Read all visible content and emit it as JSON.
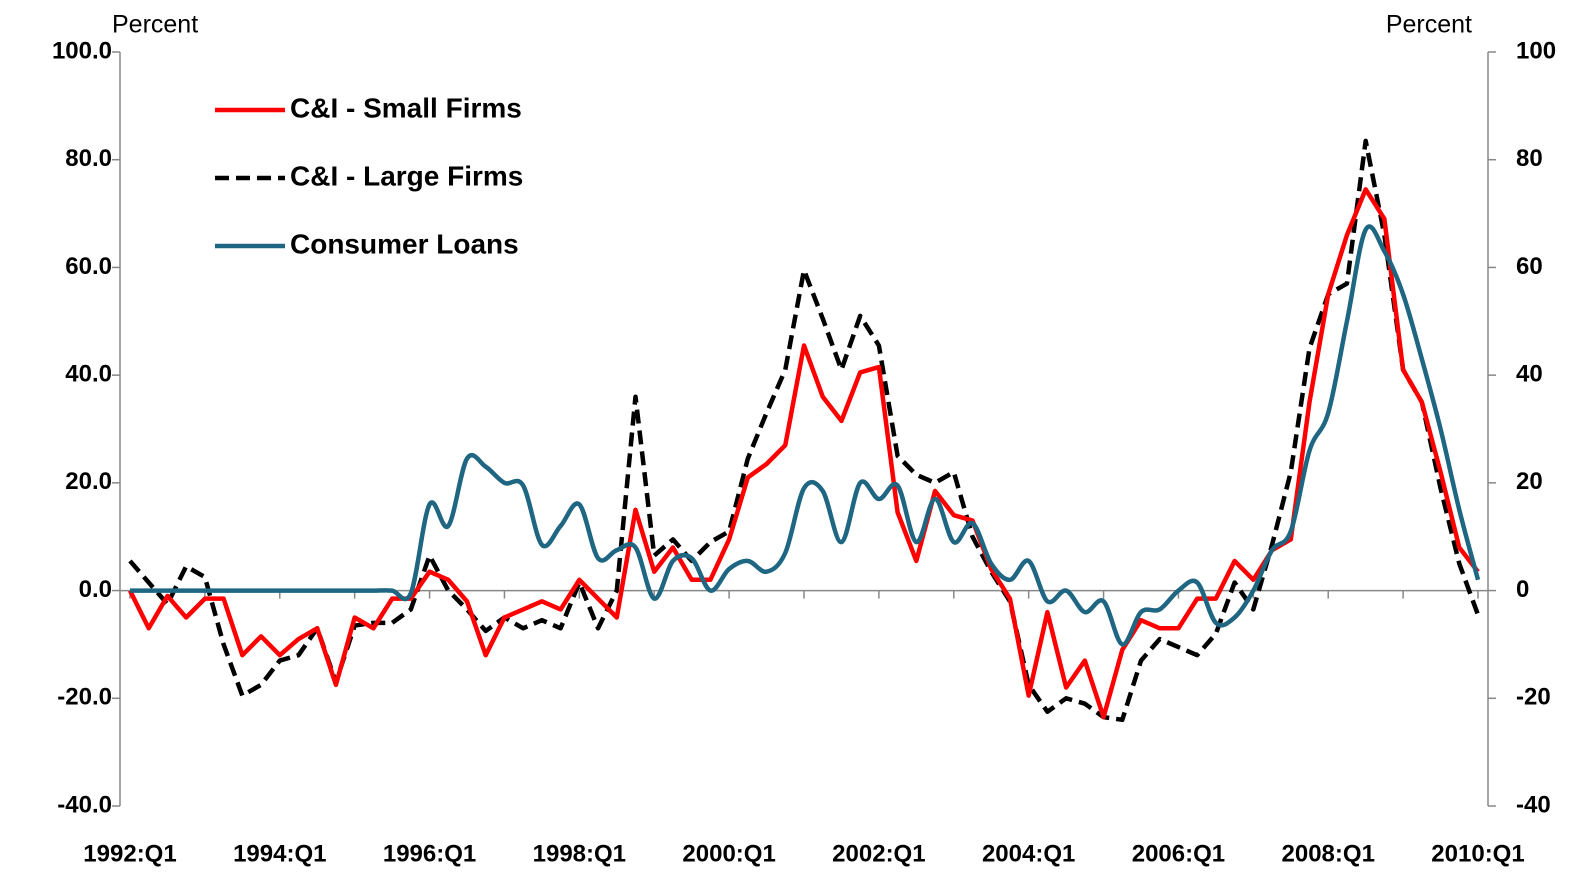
{
  "chart_data": {
    "type": "line",
    "y_label": "Percent",
    "y2_label": "Percent",
    "categories": [
      "1992:Q1",
      null,
      null,
      null,
      null,
      null,
      null,
      null,
      "1994:Q1",
      null,
      null,
      null,
      null,
      null,
      null,
      null,
      "1996:Q1",
      null,
      null,
      null,
      null,
      null,
      null,
      null,
      "1998:Q1",
      null,
      null,
      null,
      null,
      null,
      null,
      null,
      "2000:Q1",
      null,
      null,
      null,
      null,
      null,
      null,
      null,
      "2002:Q1",
      null,
      null,
      null,
      null,
      null,
      null,
      null,
      "2004:Q1",
      null,
      null,
      null,
      null,
      null,
      null,
      null,
      "2006:Q1",
      null,
      null,
      null,
      null,
      null,
      null,
      null,
      "2008:Q1",
      null,
      null,
      null,
      null,
      null,
      null,
      null,
      "2010:Q1"
    ],
    "series": [
      {
        "name": "C&I - Small Firms",
        "color": "#ff0000",
        "dash": false,
        "smooth": false,
        "values": [
          0,
          -7,
          -1,
          -5,
          -1.5,
          -1.5,
          -12,
          -8.5,
          -12,
          -9,
          -7,
          -17.5,
          -5,
          -7,
          -1.5,
          -1.5,
          3.5,
          2,
          -2,
          -12,
          -5,
          -3.5,
          -2,
          -3.5,
          2,
          -1.5,
          -5,
          15,
          3.5,
          8,
          2,
          2,
          9.5,
          21,
          23.5,
          27,
          45.5,
          36,
          31.5,
          40.5,
          41.5,
          14.5,
          5.5,
          18.5,
          14,
          13,
          4,
          -1.5,
          -19.5,
          -4,
          -18,
          -13,
          -23.5,
          -11,
          -5.5,
          -7,
          -7,
          -1.5,
          -1.5,
          5.5,
          2,
          7.5,
          9.5,
          35,
          55,
          66,
          74.5,
          69,
          41,
          35,
          22,
          8,
          3.5
        ]
      },
      {
        "name": "C&I - Large Firms",
        "color": "#000000",
        "dash": true,
        "smooth": false,
        "values": [
          5.5,
          1.5,
          -2.5,
          4.5,
          2.5,
          -10,
          -19.5,
          -17.5,
          -13,
          -12,
          -7,
          -17,
          -6.5,
          -6,
          -6,
          -3.5,
          6.5,
          0,
          -3.5,
          -7.5,
          -5,
          -7,
          -5.5,
          -7,
          1.5,
          -7,
          0,
          36,
          6.5,
          9.5,
          5.5,
          9,
          11,
          24.5,
          33,
          41,
          59.5,
          50.5,
          41,
          51,
          45.5,
          25,
          21.5,
          20,
          22,
          10,
          3.5,
          -2,
          -17.5,
          -22.5,
          -20,
          -21,
          -23.5,
          -24,
          -13,
          -9,
          -10.5,
          -12,
          -8,
          1.5,
          -3.5,
          8.5,
          22,
          45,
          55,
          57,
          83.5,
          66,
          41,
          35,
          19,
          5,
          -4.5
        ]
      },
      {
        "name": "Consumer Loans",
        "color": "#1f6682",
        "dash": false,
        "smooth": true,
        "values": [
          0,
          0,
          0,
          0,
          0,
          0,
          0,
          0,
          0,
          0,
          0,
          0,
          0,
          0,
          0,
          -0.5,
          16,
          12,
          24.5,
          23,
          20,
          19.5,
          8.5,
          12,
          16,
          6,
          7.5,
          8,
          -1.5,
          5.5,
          6,
          0,
          4,
          5.5,
          3.5,
          7,
          19,
          18.5,
          9,
          20,
          17,
          19.5,
          9,
          17,
          9,
          12.5,
          5,
          2,
          5.5,
          -2,
          0,
          -4,
          -2,
          -10,
          -4,
          -3.5,
          0,
          1.5,
          -6,
          -5,
          0,
          7.5,
          11,
          26,
          33,
          50,
          67,
          63,
          55,
          43,
          30,
          15,
          2
        ]
      }
    ],
    "ylim": [
      -40,
      100
    ],
    "yticks": [
      {
        "value": -40,
        "label": "-40.0"
      },
      {
        "value": -20,
        "label": "-20.0"
      },
      {
        "value": 0,
        "label": "0.0"
      },
      {
        "value": 20,
        "label": "20.0"
      },
      {
        "value": 40,
        "label": "40.0"
      },
      {
        "value": 60,
        "label": "60.0"
      },
      {
        "value": 80,
        "label": "80.0"
      },
      {
        "value": 100,
        "label": "100.0"
      }
    ],
    "y2lim": [
      -40,
      100
    ],
    "y2ticks": [
      -40,
      -20,
      0,
      20,
      40,
      60,
      80,
      100
    ]
  }
}
